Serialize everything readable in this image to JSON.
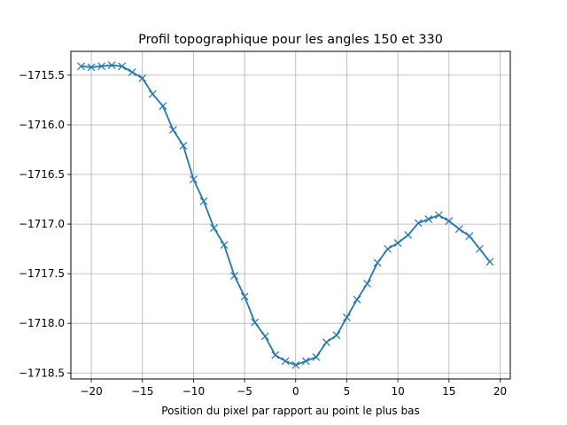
{
  "chart_data": {
    "type": "line",
    "title": "Profil topographique pour les angles 150 et 330",
    "xlabel": "Position du pixel par rapport au point le plus bas",
    "ylabel": "",
    "xlim": [
      -22.0,
      21.0
    ],
    "ylim": [
      -1718.56,
      -1715.26
    ],
    "xticks": [
      -20,
      -15,
      -10,
      -5,
      0,
      5,
      10,
      15,
      20
    ],
    "xtick_labels": [
      "−20",
      "−15",
      "−10",
      "−5",
      "0",
      "5",
      "10",
      "15",
      "20"
    ],
    "yticks": [
      -1715.5,
      -1716.0,
      -1716.5,
      -1717.0,
      -1717.5,
      -1718.0,
      -1718.5
    ],
    "ytick_labels": [
      "−1715.5",
      "−1716.0",
      "−1716.5",
      "−1717.0",
      "−1717.5",
      "−1718.0",
      "−1718.5"
    ],
    "grid": true,
    "line_color": "#1f77b4",
    "marker": "x",
    "series": [
      {
        "x": [
          -21,
          -20,
          -19,
          -18,
          -17,
          -16,
          -15,
          -14,
          -13,
          -12,
          -11,
          -10,
          -9,
          -8,
          -7,
          -6,
          -5,
          -4,
          -3,
          -2,
          -1,
          0,
          1,
          2,
          3,
          4,
          5,
          6,
          7,
          8,
          9,
          10,
          11,
          12,
          13,
          14,
          15,
          16,
          17,
          18,
          19
        ],
        "y": [
          -1715.41,
          -1715.42,
          -1715.41,
          -1715.4,
          -1715.41,
          -1715.47,
          -1715.53,
          -1715.69,
          -1715.81,
          -1716.05,
          -1716.21,
          -1716.55,
          -1716.77,
          -1717.04,
          -1717.21,
          -1717.52,
          -1717.73,
          -1717.99,
          -1718.13,
          -1718.32,
          -1718.38,
          -1718.42,
          -1718.38,
          -1718.34,
          -1718.19,
          -1718.12,
          -1717.94,
          -1717.76,
          -1717.6,
          -1717.39,
          -1717.25,
          -1717.19,
          -1717.11,
          -1716.99,
          -1716.95,
          -1716.91,
          -1716.97,
          -1717.05,
          -1717.12,
          -1717.25,
          -1717.38
        ]
      }
    ]
  }
}
